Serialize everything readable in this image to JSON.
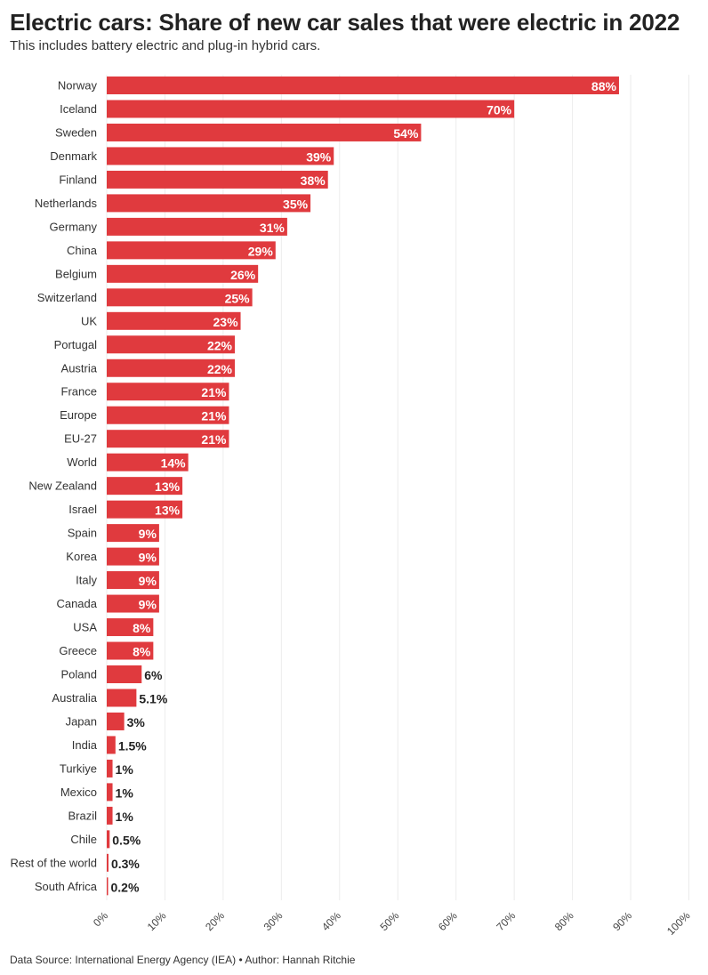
{
  "header": {
    "title": "Electric cars: Share of new car sales that were electric in 2022",
    "subtitle": "This includes battery electric and plug-in hybrid cars."
  },
  "footer": {
    "source": "Data Source: International Energy Agency (IEA) • Author: Hannah Ritchie"
  },
  "colors": {
    "bar": "#e03a3e",
    "label_inside": "#ffffff",
    "label_outside": "#222222",
    "grid": "#ececec"
  },
  "chart_data": {
    "type": "bar",
    "orientation": "horizontal",
    "title": "Electric cars: Share of new car sales that were electric in 2022",
    "subtitle": "This includes battery electric and plug-in hybrid cars.",
    "xlim": [
      0,
      100
    ],
    "x_ticks": [
      "0%",
      "10%",
      "20%",
      "30%",
      "40%",
      "50%",
      "60%",
      "70%",
      "80%",
      "90%",
      "100%"
    ],
    "grid": true,
    "categories": [
      "Norway",
      "Iceland",
      "Sweden",
      "Denmark",
      "Finland",
      "Netherlands",
      "Germany",
      "China",
      "Belgium",
      "Switzerland",
      "UK",
      "Portugal",
      "Austria",
      "France",
      "Europe",
      "EU-27",
      "World",
      "New Zealand",
      "Israel",
      "Spain",
      "Korea",
      "Italy",
      "Canada",
      "USA",
      "Greece",
      "Poland",
      "Australia",
      "Japan",
      "India",
      "Turkiye",
      "Mexico",
      "Brazil",
      "Chile",
      "Rest of the world",
      "South Africa"
    ],
    "values": [
      88,
      70,
      54,
      39,
      38,
      35,
      31,
      29,
      26,
      25,
      23,
      22,
      22,
      21,
      21,
      21,
      14,
      13,
      13,
      9,
      9,
      9,
      9,
      8,
      8,
      6,
      5.1,
      3,
      1.5,
      1,
      1,
      1,
      0.5,
      0.3,
      0.2
    ],
    "value_labels": [
      "88%",
      "70%",
      "54%",
      "39%",
      "38%",
      "35%",
      "31%",
      "29%",
      "26%",
      "25%",
      "23%",
      "22%",
      "22%",
      "21%",
      "21%",
      "21%",
      "14%",
      "13%",
      "13%",
      "9%",
      "9%",
      "9%",
      "9%",
      "8%",
      "8%",
      "6%",
      "5.1%",
      "3%",
      "1.5%",
      "1%",
      "1%",
      "1%",
      "0.5%",
      "0.3%",
      "0.2%"
    ]
  }
}
